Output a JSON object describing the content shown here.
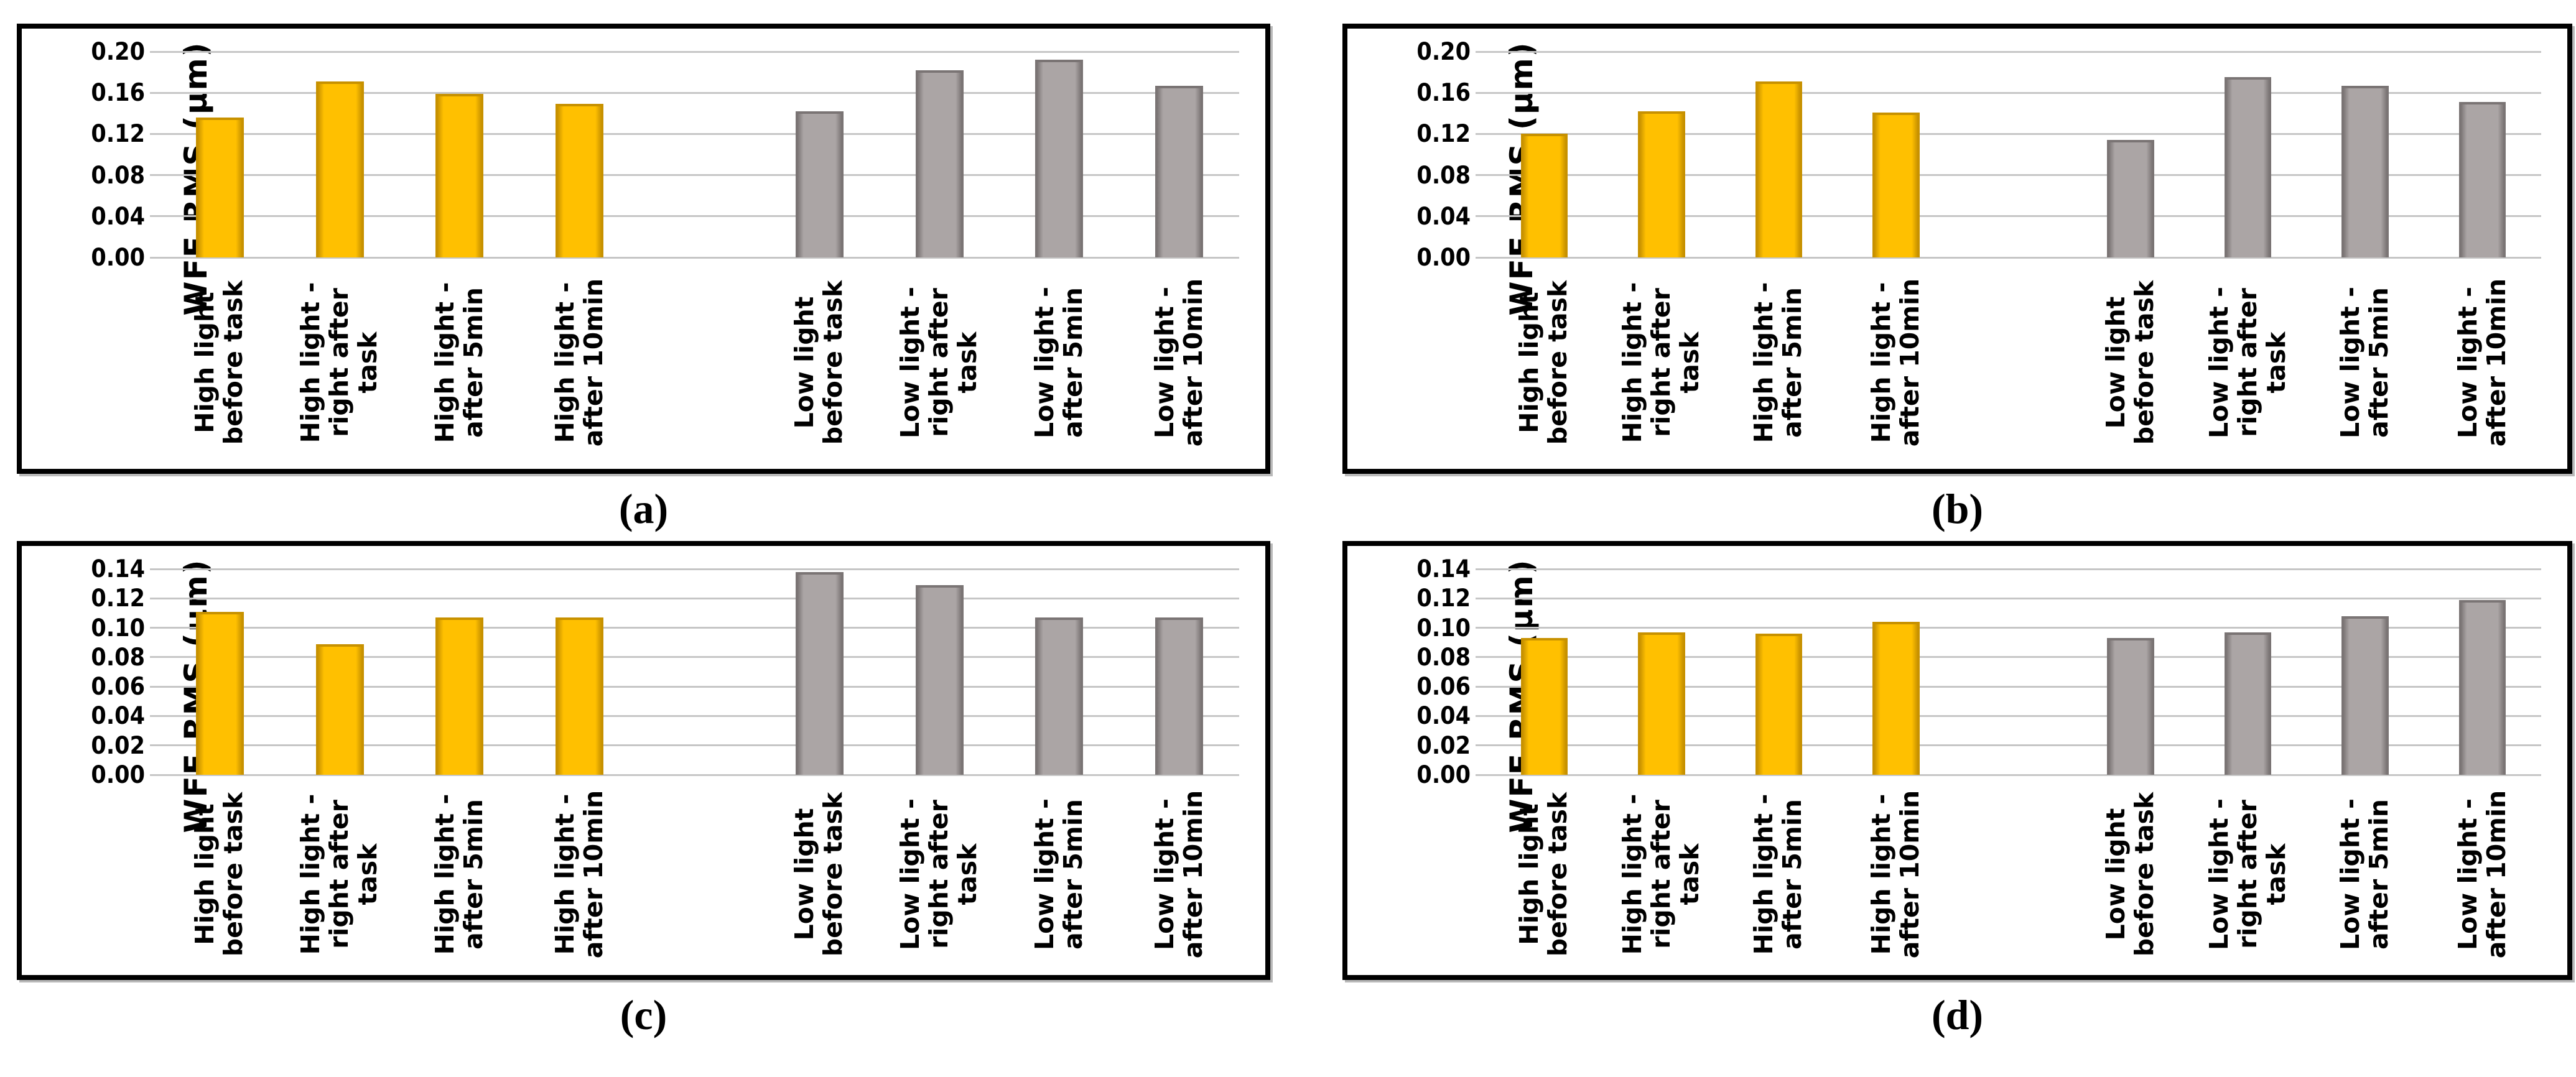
{
  "figure": {
    "y_axis_label": "WFE RMS (μm)",
    "colors": {
      "high_light_fill": "#FFC000",
      "high_light_edge": "#C79100",
      "low_light_fill": "#ABA5A5",
      "low_light_edge": "#7A7474",
      "gridline": "#C6C6C6",
      "panel_border": "#000000"
    },
    "captions": [
      "(a)",
      "(b)",
      "(c)",
      "(d)"
    ]
  },
  "categories": [
    {
      "group": "high",
      "lines": "High light\nbefore task"
    },
    {
      "group": "high",
      "lines": "High light -\nright after\ntask"
    },
    {
      "group": "high",
      "lines": "High light -\nafter 5min"
    },
    {
      "group": "high",
      "lines": "High light -\nafter 10min"
    },
    {
      "group": "spacer",
      "lines": ""
    },
    {
      "group": "low",
      "lines": "Low light\nbefore task"
    },
    {
      "group": "low",
      "lines": "Low light -\nright after\ntask"
    },
    {
      "group": "low",
      "lines": "Low light -\nafter 5min"
    },
    {
      "group": "low",
      "lines": "Low light -\nafter 10min"
    }
  ],
  "chart_data": [
    {
      "id": "a",
      "type": "bar",
      "title": "(a)",
      "ylabel": "WFE RMS (μm)",
      "ylim": [
        0,
        0.2
      ],
      "ytick_step": 0.04,
      "yticks": [
        "0.00",
        "0.04",
        "0.08",
        "0.12",
        "0.16",
        "0.20"
      ],
      "grid": true,
      "legend": "none",
      "categories": [
        "High light before task",
        "High light - right after task",
        "High light - after 5min",
        "High light - after 10min",
        "Low light before task",
        "Low light - right after task",
        "Low light - after 5min",
        "Low light - after 10min"
      ],
      "series": [
        {
          "name": "High light",
          "slots": [
            0,
            1,
            2,
            3
          ],
          "values": [
            0.136,
            0.171,
            0.159,
            0.149
          ]
        },
        {
          "name": "Low light",
          "slots": [
            5,
            6,
            7,
            8
          ],
          "values": [
            0.142,
            0.182,
            0.192,
            0.167
          ]
        }
      ]
    },
    {
      "id": "b",
      "type": "bar",
      "title": "(b)",
      "ylabel": "WFE RMS (μm)",
      "ylim": [
        0,
        0.2
      ],
      "ytick_step": 0.04,
      "yticks": [
        "0.00",
        "0.04",
        "0.08",
        "0.12",
        "0.16",
        "0.20"
      ],
      "grid": true,
      "legend": "none",
      "categories": [
        "High light before task",
        "High light - right after task",
        "High light - after 5min",
        "High light - after 10min",
        "Low light before task",
        "Low light - right after task",
        "Low light - after 5min",
        "Low light - after 10min"
      ],
      "series": [
        {
          "name": "High light",
          "slots": [
            0,
            1,
            2,
            3
          ],
          "values": [
            0.12,
            0.142,
            0.171,
            0.141
          ]
        },
        {
          "name": "Low light",
          "slots": [
            5,
            6,
            7,
            8
          ],
          "values": [
            0.114,
            0.175,
            0.167,
            0.151
          ]
        }
      ]
    },
    {
      "id": "c",
      "type": "bar",
      "title": "(c)",
      "ylabel": "WFE RMS (μm)",
      "ylim": [
        0,
        0.14
      ],
      "ytick_step": 0.02,
      "yticks": [
        "0.00",
        "0.02",
        "0.04",
        "0.06",
        "0.08",
        "0.10",
        "0.12",
        "0.14"
      ],
      "grid": true,
      "legend": "none",
      "categories": [
        "High light before task",
        "High light - right after task",
        "High light - after 5min",
        "High light - after 10min",
        "Low light before task",
        "Low light - right after task",
        "Low light - after 5min",
        "Low light - after 10min"
      ],
      "series": [
        {
          "name": "High light",
          "slots": [
            0,
            1,
            2,
            3
          ],
          "values": [
            0.111,
            0.089,
            0.107,
            0.107
          ]
        },
        {
          "name": "Low light",
          "slots": [
            5,
            6,
            7,
            8
          ],
          "values": [
            0.138,
            0.129,
            0.107,
            0.107
          ]
        }
      ]
    },
    {
      "id": "d",
      "type": "bar",
      "title": "(d)",
      "ylabel": "WFE RMS (μm)",
      "ylim": [
        0,
        0.14
      ],
      "ytick_step": 0.02,
      "yticks": [
        "0.00",
        "0.02",
        "0.04",
        "0.06",
        "0.08",
        "0.10",
        "0.12",
        "0.14"
      ],
      "grid": true,
      "legend": "none",
      "categories": [
        "High light before task",
        "High light - right after task",
        "High light - after 5min",
        "High light - after 10min",
        "Low light before task",
        "Low light - right after task",
        "Low light - after 5min",
        "Low light - after 10min"
      ],
      "series": [
        {
          "name": "High light",
          "slots": [
            0,
            1,
            2,
            3
          ],
          "values": [
            0.093,
            0.097,
            0.096,
            0.104
          ]
        },
        {
          "name": "Low light",
          "slots": [
            5,
            6,
            7,
            8
          ],
          "values": [
            0.093,
            0.097,
            0.108,
            0.119
          ]
        }
      ]
    }
  ]
}
